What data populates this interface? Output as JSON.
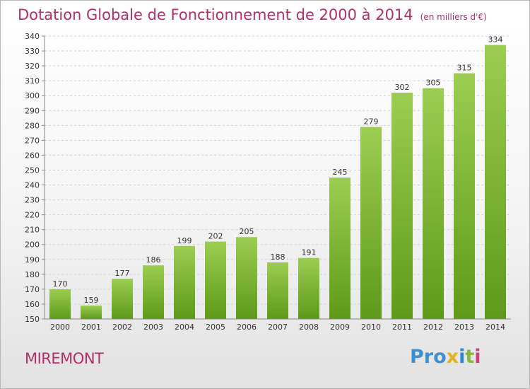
{
  "title": "Dotation Globale de Fonctionnement de 2000 à 2014",
  "subtitle": "(en milliers d'€)",
  "city": "MIREMONT",
  "logo": {
    "p1": "Pro",
    "p2": "x",
    "p3": "i",
    "p4": "t",
    "p5": "i"
  },
  "colors": {
    "bar_top": "#9ccd52",
    "bar_bottom": "#5e9a18",
    "title": "#b0306a"
  },
  "chart_data": {
    "type": "bar",
    "title": "Dotation Globale de Fonctionnement de 2000 à 2014",
    "xlabel": "",
    "ylabel": "",
    "categories": [
      "2000",
      "2001",
      "2002",
      "2003",
      "2004",
      "2005",
      "2006",
      "2007",
      "2008",
      "2009",
      "2010",
      "2011",
      "2012",
      "2013",
      "2014"
    ],
    "values": [
      170,
      159,
      177,
      186,
      199,
      202,
      205,
      188,
      191,
      245,
      279,
      302,
      305,
      315,
      334
    ],
    "ylim": [
      150,
      340
    ],
    "yticks": [
      150,
      160,
      170,
      180,
      190,
      200,
      210,
      220,
      230,
      240,
      250,
      260,
      270,
      280,
      290,
      300,
      310,
      320,
      330,
      340
    ],
    "grid": true,
    "legend": "none"
  }
}
